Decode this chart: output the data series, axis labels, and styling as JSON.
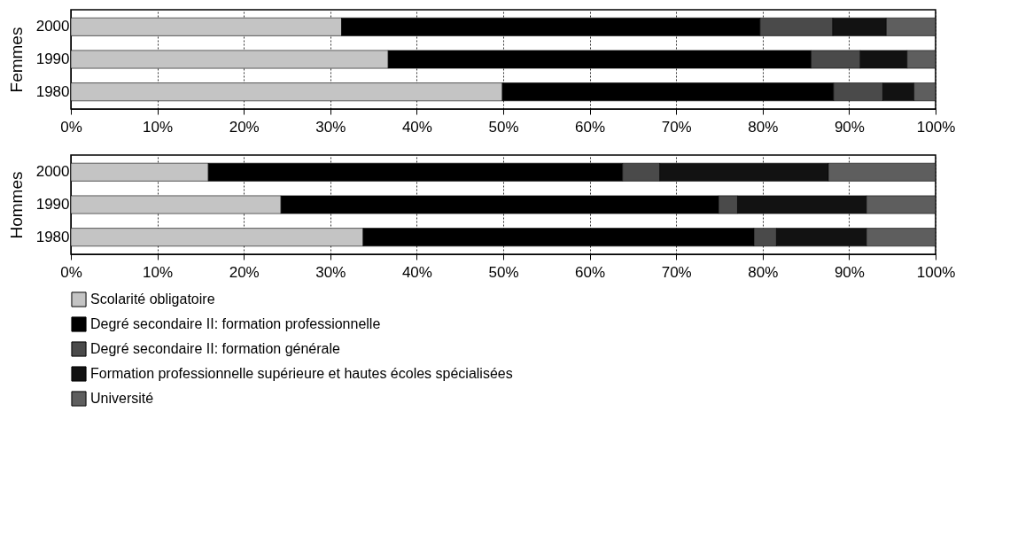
{
  "chart_data": [
    {
      "type": "bar",
      "orientation": "horizontal",
      "stacked": true,
      "ylabel": "Femmes",
      "categories": [
        "2000",
        "1990",
        "1980"
      ],
      "xlim": [
        0,
        100
      ],
      "xticks": [
        {
          "value": 0,
          "label": "0%"
        },
        {
          "value": 10,
          "label": "10%"
        },
        {
          "value": 20,
          "label": "20%"
        },
        {
          "value": 30,
          "label": "30%"
        },
        {
          "value": 40,
          "label": "40%"
        },
        {
          "value": 50,
          "label": "50%"
        },
        {
          "value": 60,
          "label": "60%"
        },
        {
          "value": 70,
          "label": "70%"
        },
        {
          "value": 80,
          "label": "80%"
        },
        {
          "value": 90,
          "label": "90%"
        },
        {
          "value": 100,
          "label": "100%"
        }
      ],
      "grid": "x",
      "series": [
        {
          "color": "#c4c4c4",
          "values": [
            31.3,
            36.7,
            49.9
          ]
        },
        {
          "color": "#000000",
          "values": [
            48.4,
            48.9,
            38.3
          ]
        },
        {
          "color": "#4a4a4a",
          "values": [
            8.4,
            5.7,
            5.7
          ]
        },
        {
          "color": "#121212",
          "values": [
            6.2,
            5.4,
            3.6
          ]
        },
        {
          "color": "#5e5e5e",
          "values": [
            5.7,
            3.3,
            2.5
          ]
        }
      ]
    },
    {
      "type": "bar",
      "orientation": "horizontal",
      "stacked": true,
      "ylabel": "Hommes",
      "categories": [
        "2000",
        "1990",
        "1980"
      ],
      "xlim": [
        0,
        100
      ],
      "xticks": [
        {
          "value": 0,
          "label": "0%"
        },
        {
          "value": 10,
          "label": "10%"
        },
        {
          "value": 20,
          "label": "20%"
        },
        {
          "value": 30,
          "label": "30%"
        },
        {
          "value": 40,
          "label": "40%"
        },
        {
          "value": 50,
          "label": "50%"
        },
        {
          "value": 60,
          "label": "60%"
        },
        {
          "value": 70,
          "label": "70%"
        },
        {
          "value": 80,
          "label": "80%"
        },
        {
          "value": 90,
          "label": "90%"
        },
        {
          "value": 100,
          "label": "100%"
        }
      ],
      "grid": "x",
      "legend": "bottom",
      "series": [
        {
          "name": "Scolarité obligatoire",
          "color": "#c4c4c4",
          "values": [
            15.9,
            24.3,
            33.8
          ]
        },
        {
          "name": "Degré secondaire II: formation professionnelle",
          "color": "#000000",
          "values": [
            47.9,
            50.6,
            45.2
          ]
        },
        {
          "name": "Degré secondaire II: formation générale",
          "color": "#4a4a4a",
          "values": [
            4.3,
            2.2,
            2.6
          ]
        },
        {
          "name": "Formation professionnelle supérieure et hautes écoles spécialisées",
          "color": "#121212",
          "values": [
            19.5,
            14.9,
            10.4
          ]
        },
        {
          "name": "Université",
          "color": "#5e5e5e",
          "values": [
            12.4,
            8.0,
            8.0
          ]
        }
      ]
    }
  ]
}
